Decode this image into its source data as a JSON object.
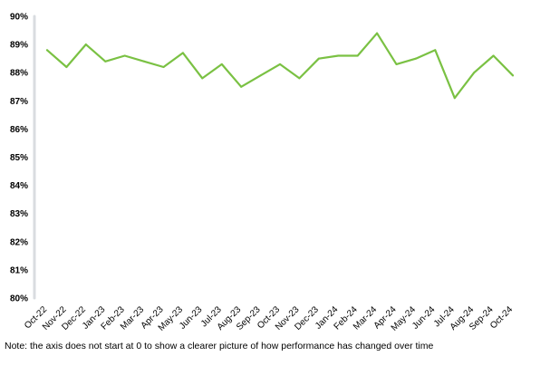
{
  "chart_data": {
    "type": "line",
    "categories": [
      "Oct-22",
      "Nov-22",
      "Dec-22",
      "Jan-23",
      "Feb-23",
      "Mar-23",
      "Apr-23",
      "May-23",
      "Jun-23",
      "Jul-23",
      "Aug-23",
      "Sep-23",
      "Oct-23",
      "Nov-23",
      "Dec-23",
      "Jan-24",
      "Feb-24",
      "Mar-24",
      "Apr-24",
      "May-24",
      "Jun-24",
      "Jul-24",
      "Aug-24",
      "Sep-24",
      "Oct-24"
    ],
    "series": [
      {
        "values": [
          88.8,
          88.2,
          89.0,
          88.4,
          88.6,
          88.4,
          88.2,
          88.7,
          87.8,
          88.3,
          87.5,
          87.9,
          88.3,
          87.8,
          88.5,
          88.6,
          88.6,
          89.4,
          88.3,
          88.5,
          88.8,
          87.1,
          88.0,
          88.6,
          87.9
        ]
      }
    ],
    "y_ticks": [
      "80%",
      "81%",
      "82%",
      "83%",
      "84%",
      "85%",
      "86%",
      "87%",
      "88%",
      "89%",
      "90%"
    ],
    "ylim": [
      80,
      90
    ],
    "grid": false,
    "line_color": "#7ac143",
    "axis_color": "#d9dce0",
    "title": "",
    "xlabel": "",
    "ylabel": ""
  },
  "note": "Note: the axis does not start at 0 to show a clearer picture of how performance has changed over time"
}
